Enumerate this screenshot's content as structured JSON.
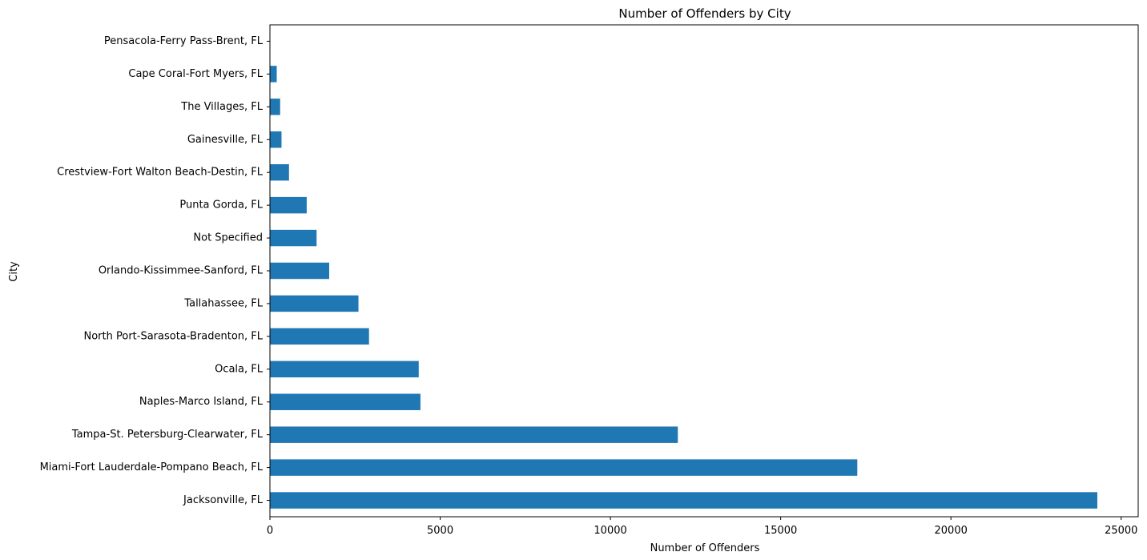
{
  "chart_data": {
    "type": "bar",
    "orientation": "horizontal",
    "title": "Number of Offenders by City",
    "xlabel": "Number of Offenders",
    "ylabel": "City",
    "xlim": [
      0,
      25500
    ],
    "xticks": [
      0,
      5000,
      10000,
      15000,
      20000,
      25000
    ],
    "grid": false,
    "legend": "none",
    "bar_color": "#1f77b4",
    "categories": [
      "Jacksonville, FL",
      "Miami-Fort Lauderdale-Pompano Beach, FL",
      "Tampa-St. Petersburg-Clearwater, FL",
      "Naples-Marco Island, FL",
      "Ocala, FL",
      "North Port-Sarasota-Bradenton, FL",
      "Tallahassee, FL",
      "Orlando-Kissimmee-Sanford, FL",
      "Not Specified",
      "Punta Gorda, FL",
      "Crestview-Fort Walton Beach-Destin, FL",
      "Gainesville, FL",
      "The Villages, FL",
      "Cape Coral-Fort Myers, FL",
      "Pensacola-Ferry Pass-Brent, FL"
    ],
    "values": [
      24300,
      17250,
      11980,
      4420,
      4370,
      2910,
      2600,
      1740,
      1370,
      1080,
      560,
      340,
      300,
      200,
      5
    ]
  }
}
